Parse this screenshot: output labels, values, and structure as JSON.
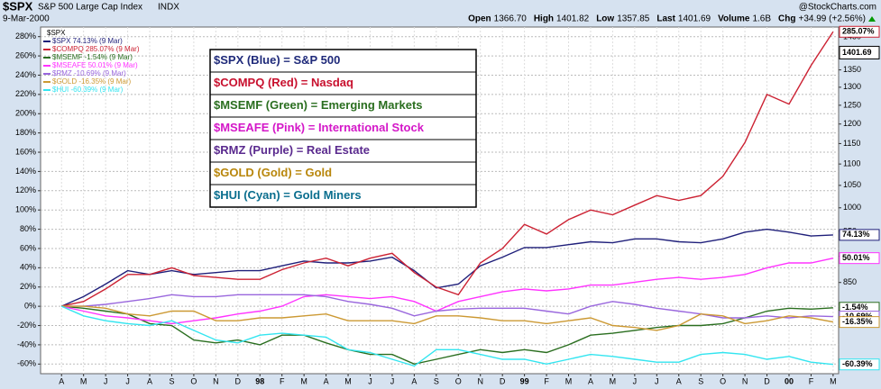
{
  "chart_data": {
    "type": "line",
    "header": {
      "symbol": "$SPX",
      "name": "S&P 500 Large Cap Index",
      "exchange": "INDX",
      "date": "9-Mar-2000",
      "source": "@StockCharts.com",
      "quote": [
        [
          "Open",
          "1366.70"
        ],
        [
          "High",
          "1401.82"
        ],
        [
          "Low",
          "1357.85"
        ],
        [
          "Last",
          "1401.69"
        ],
        [
          "Volume",
          "1.6B"
        ],
        [
          "Chg",
          "+34.99 (+2.56%)"
        ]
      ],
      "change_color": "#009900"
    },
    "legend_title": "$SPX",
    "last_price": 1401.69,
    "notes": [
      {
        "text": "$SPX (Blue) = S&P 500",
        "color": "#1f2a7a"
      },
      {
        "text": "$COMPQ (Red) = Nasdaq",
        "color": "#c8102e"
      },
      {
        "text": "$MSEMF (Green) = Emerging Markets",
        "color": "#2a6e1f"
      },
      {
        "text": "$MSEAFE (Pink) = International Stock",
        "color": "#d417c8"
      },
      {
        "text": "$RMZ (Purple) = Real Estate",
        "color": "#5a2a8e"
      },
      {
        "text": "$GOLD (Gold) = Gold",
        "color": "#b8860b"
      },
      {
        "text": "$HUI (Cyan) = Gold Miners",
        "color": "#0a6e8e"
      }
    ],
    "categories": [
      "A",
      "M",
      "J",
      "J",
      "A",
      "S",
      "O",
      "N",
      "D",
      "98",
      "F",
      "M",
      "A",
      "M",
      "J",
      "J",
      "A",
      "S",
      "O",
      "N",
      "D",
      "99",
      "F",
      "M",
      "A",
      "M",
      "J",
      "J",
      "A",
      "S",
      "O",
      "N",
      "D",
      "00",
      "F",
      "M"
    ],
    "series": [
      {
        "name": "$SPX 74.13% (9 Mar)",
        "color": "#1f1f7a",
        "end_label": "74.13%",
        "values": [
          0,
          10,
          23,
          37,
          33,
          37,
          33,
          35,
          37,
          37,
          42,
          47,
          45,
          45,
          47,
          51,
          37,
          19,
          23,
          42,
          51,
          61,
          61,
          64,
          67,
          66,
          70,
          70,
          67,
          66,
          70,
          77,
          80,
          77,
          73,
          74.13
        ]
      },
      {
        "name": "$COMPQ 285.07% (9 Mar)",
        "color": "#cc2233",
        "end_label": "285.07%",
        "values": [
          0,
          5,
          18,
          33,
          33,
          40,
          32,
          30,
          28,
          28,
          38,
          45,
          50,
          42,
          50,
          55,
          35,
          20,
          12,
          45,
          60,
          85,
          75,
          90,
          100,
          95,
          105,
          115,
          110,
          115,
          135,
          170,
          220,
          210,
          250,
          285.07
        ]
      },
      {
        "name": "$MSEMF -1.54% (9 Mar)",
        "color": "#2a6e1f",
        "end_label": "-1.54%",
        "values": [
          0,
          -2,
          -5,
          -8,
          -18,
          -20,
          -35,
          -38,
          -35,
          -40,
          -30,
          -30,
          -38,
          -45,
          -50,
          -50,
          -60,
          -55,
          -50,
          -45,
          -48,
          -45,
          -48,
          -40,
          -30,
          -28,
          -25,
          -22,
          -20,
          -20,
          -18,
          -12,
          -5,
          -2,
          -3,
          -1.54
        ]
      },
      {
        "name": "$MSEAFE 50.01% (9 Mar)",
        "color": "#ff33ff",
        "end_label": "50.01%",
        "values": [
          0,
          -5,
          -10,
          -12,
          -15,
          -18,
          -15,
          -12,
          -8,
          -5,
          0,
          10,
          12,
          10,
          8,
          10,
          5,
          -5,
          5,
          10,
          15,
          18,
          16,
          18,
          22,
          22,
          25,
          28,
          30,
          28,
          30,
          33,
          40,
          45,
          45,
          50.01
        ]
      },
      {
        "name": "$RMZ -10.69% (9 Mar)",
        "color": "#9966dd",
        "end_label": "-10.69%",
        "values": [
          0,
          0,
          2,
          5,
          8,
          12,
          10,
          10,
          12,
          12,
          12,
          12,
          10,
          5,
          2,
          -2,
          -10,
          -5,
          -3,
          -2,
          -2,
          -2,
          -5,
          -8,
          0,
          5,
          2,
          -2,
          -5,
          -8,
          -12,
          -12,
          -10,
          -12,
          -10,
          -10.69
        ]
      },
      {
        "name": "$GOLD -16.35% (9 Mar)",
        "color": "#cc9933",
        "end_label": "-16.35%",
        "values": [
          0,
          0,
          -2,
          -8,
          -10,
          -5,
          -5,
          -15,
          -15,
          -12,
          -12,
          -10,
          -8,
          -15,
          -15,
          -15,
          -18,
          -10,
          -10,
          -12,
          -15,
          -15,
          -18,
          -15,
          -12,
          -20,
          -22,
          -25,
          -20,
          -8,
          -10,
          -18,
          -15,
          -10,
          -12,
          -16.35
        ]
      },
      {
        "name": "$HUI -60.39% (9 Mar)",
        "color": "#33e5f0",
        "end_label": "-60.39%",
        "values": [
          0,
          -10,
          -15,
          -18,
          -20,
          -15,
          -25,
          -35,
          -38,
          -30,
          -28,
          -30,
          -32,
          -45,
          -48,
          -55,
          -62,
          -45,
          -45,
          -50,
          -55,
          -55,
          -60,
          -55,
          -50,
          -52,
          -55,
          -58,
          -58,
          -50,
          -48,
          -50,
          -55,
          -52,
          -58,
          -60.39
        ]
      }
    ],
    "ylim": [
      -70,
      290
    ],
    "yticks": [
      {
        "value": -60,
        "label": "-60%"
      },
      {
        "value": -40,
        "label": "-40%"
      },
      {
        "value": -20,
        "label": "-20%"
      },
      {
        "value": 0,
        "label": "0%"
      },
      {
        "value": 20,
        "label": "20%"
      },
      {
        "value": 40,
        "label": "40%"
      },
      {
        "value": 60,
        "label": "60%"
      },
      {
        "value": 80,
        "label": "80%"
      },
      {
        "value": 100,
        "label": "100%"
      },
      {
        "value": 120,
        "label": "120%"
      },
      {
        "value": 140,
        "label": "140%"
      },
      {
        "value": 160,
        "label": "160%"
      },
      {
        "value": 180,
        "label": "180%"
      },
      {
        "value": 200,
        "label": "200%"
      },
      {
        "value": 220,
        "label": "220%"
      },
      {
        "value": 240,
        "label": "240%"
      },
      {
        "value": 260,
        "label": "260%"
      },
      {
        "value": 280,
        "label": "280%"
      }
    ],
    "y2lim": [
      697,
      1482
    ],
    "y2scale": "log",
    "y2ticks": [
      800,
      850,
      900,
      950,
      1000,
      1050,
      1100,
      1150,
      1200,
      1250,
      1300,
      1350,
      1450
    ],
    "grid": true
  }
}
